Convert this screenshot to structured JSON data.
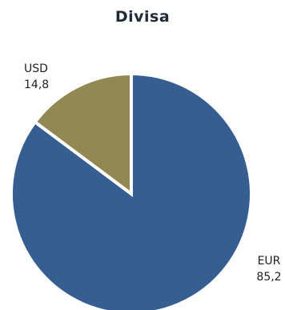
{
  "chart_data": {
    "type": "pie",
    "title": "Divisa",
    "slices": [
      {
        "label": "EUR",
        "value": 85.2,
        "value_text": "85,2",
        "color": "#365e91"
      },
      {
        "label": "USD",
        "value": 14.8,
        "value_text": "14,8",
        "color": "#928853"
      }
    ],
    "legend": "none"
  }
}
